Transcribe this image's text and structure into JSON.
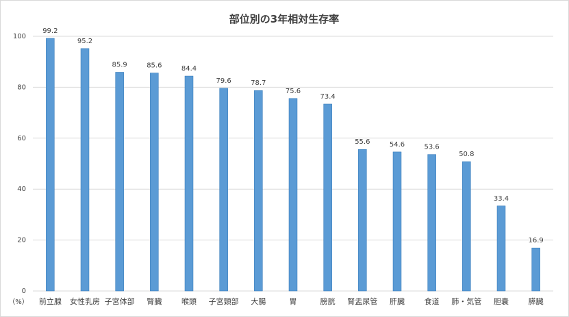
{
  "chart_data": {
    "type": "bar",
    "title": "部位別の3年相対生存率",
    "unit_label": "（%）",
    "ylim": [
      0,
      100
    ],
    "yticks": [
      0,
      20,
      40,
      60,
      80,
      100
    ],
    "grid": true,
    "categories": [
      "前立腺",
      "女性乳房",
      "子宮体部",
      "腎臓",
      "喉頭",
      "子宮頸部",
      "大腸",
      "胃",
      "膀胱",
      "腎盂尿管",
      "肝臓",
      "食道",
      "肺・気管",
      "胆嚢",
      "膵臓"
    ],
    "values": [
      99.2,
      95.2,
      85.9,
      85.6,
      84.4,
      79.6,
      78.7,
      75.6,
      73.4,
      55.6,
      54.6,
      53.6,
      50.8,
      33.4,
      16.9
    ],
    "bar_color": "#5b9bd5",
    "bar_border_color": "#2e75b6",
    "grid_color": "#d9d9d9"
  }
}
